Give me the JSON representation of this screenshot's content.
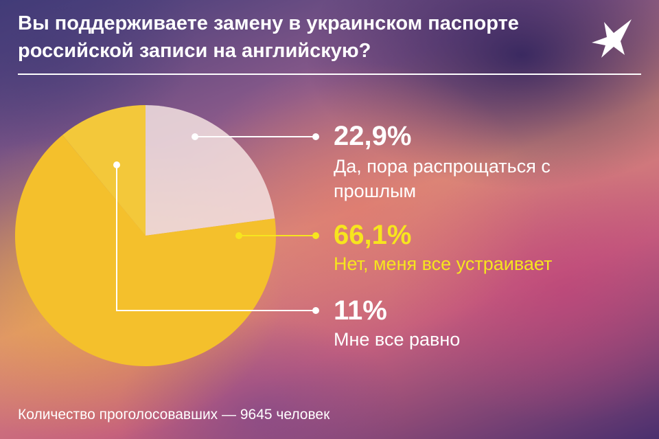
{
  "title": "Вы поддерживаете замену в украинском паспорте российской записи на английскую?",
  "footer": "Количество проголосовавших — 9645 человек",
  "colors": {
    "yes": "#f3e2e0",
    "no": "#f4c02c",
    "neutral": "#f3c83a",
    "highlight": "#f7e51e"
  },
  "chart_data": {
    "type": "pie",
    "title": "Вы поддерживаете замену в украинском паспорте российской записи на английскую?",
    "slices": [
      {
        "value": 22.9,
        "value_label": "22,9%",
        "label": "Да, пора распрощаться с прошлым"
      },
      {
        "value": 66.1,
        "value_label": "66,1%",
        "label": "Нет, меня все устраивает"
      },
      {
        "value": 11,
        "value_label": "11%",
        "label": "Мне все равно"
      }
    ]
  }
}
